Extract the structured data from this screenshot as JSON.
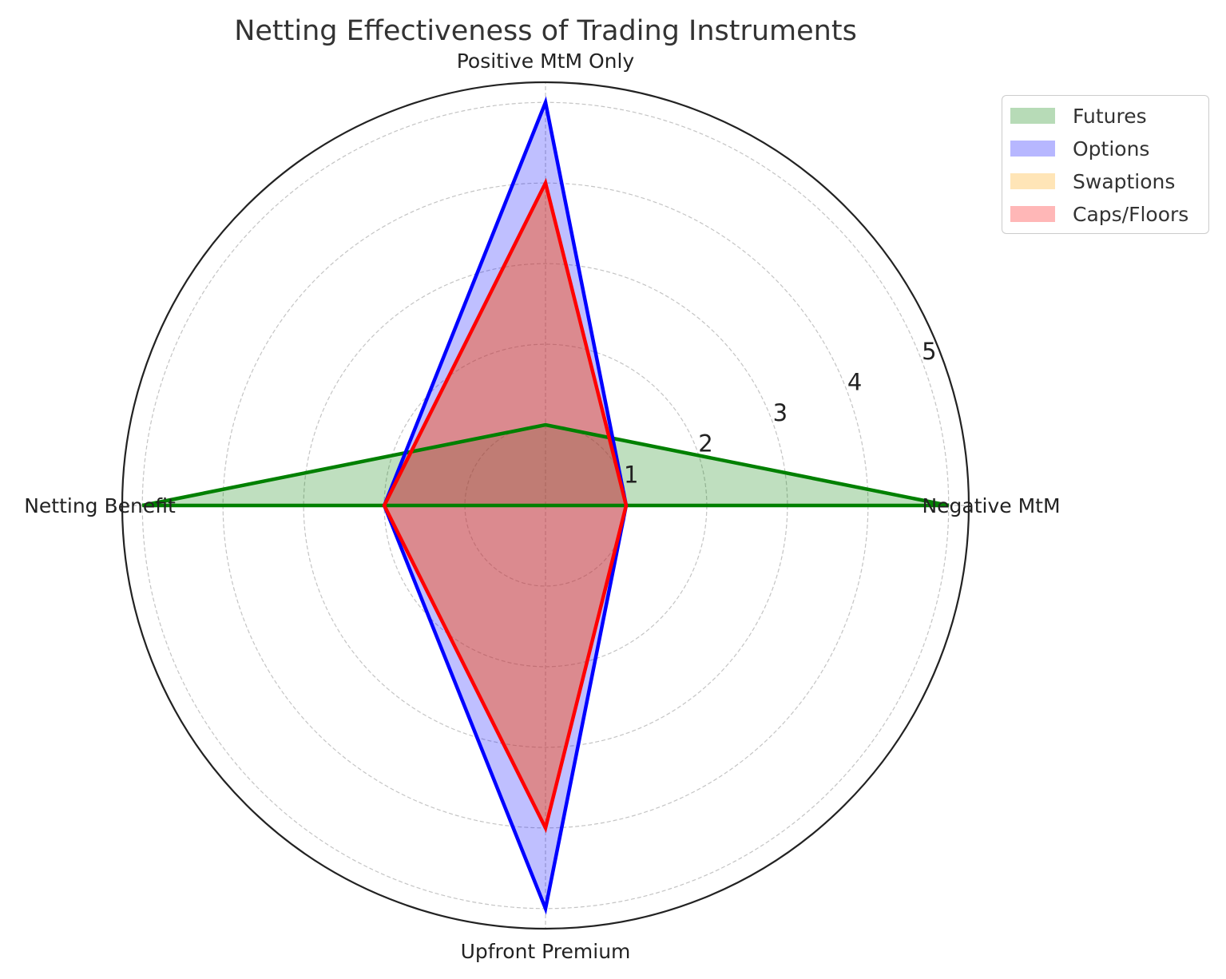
{
  "chart_data": {
    "type": "radar",
    "title": "Netting Effectiveness of Trading Instruments",
    "axes": [
      "Negative MtM",
      "Positive MtM Only",
      "Netting Benefit",
      "Upfront Premium"
    ],
    "radial_ticks": [
      1,
      2,
      3,
      4,
      5
    ],
    "radial_range": [
      0,
      5.25
    ],
    "grid": true,
    "legend_position": "top-right",
    "series": [
      {
        "name": "Futures",
        "values": [
          5,
          1,
          5,
          0
        ],
        "line_color": "#008000",
        "fill_color": "#008000",
        "line": true
      },
      {
        "name": "Options",
        "values": [
          1,
          5,
          2,
          5
        ],
        "line_color": "#0000ff",
        "fill_color": "#0000ff",
        "line": true
      },
      {
        "name": "Swaptions",
        "values": [
          1,
          4,
          2,
          4
        ],
        "line_color": "#ffa500",
        "fill_color": "#ffa500",
        "line": false
      },
      {
        "name": "Caps/Floors",
        "values": [
          1,
          4,
          2,
          4
        ],
        "line_color": "#ff0000",
        "fill_color": "#ff0000",
        "line": true
      }
    ]
  }
}
